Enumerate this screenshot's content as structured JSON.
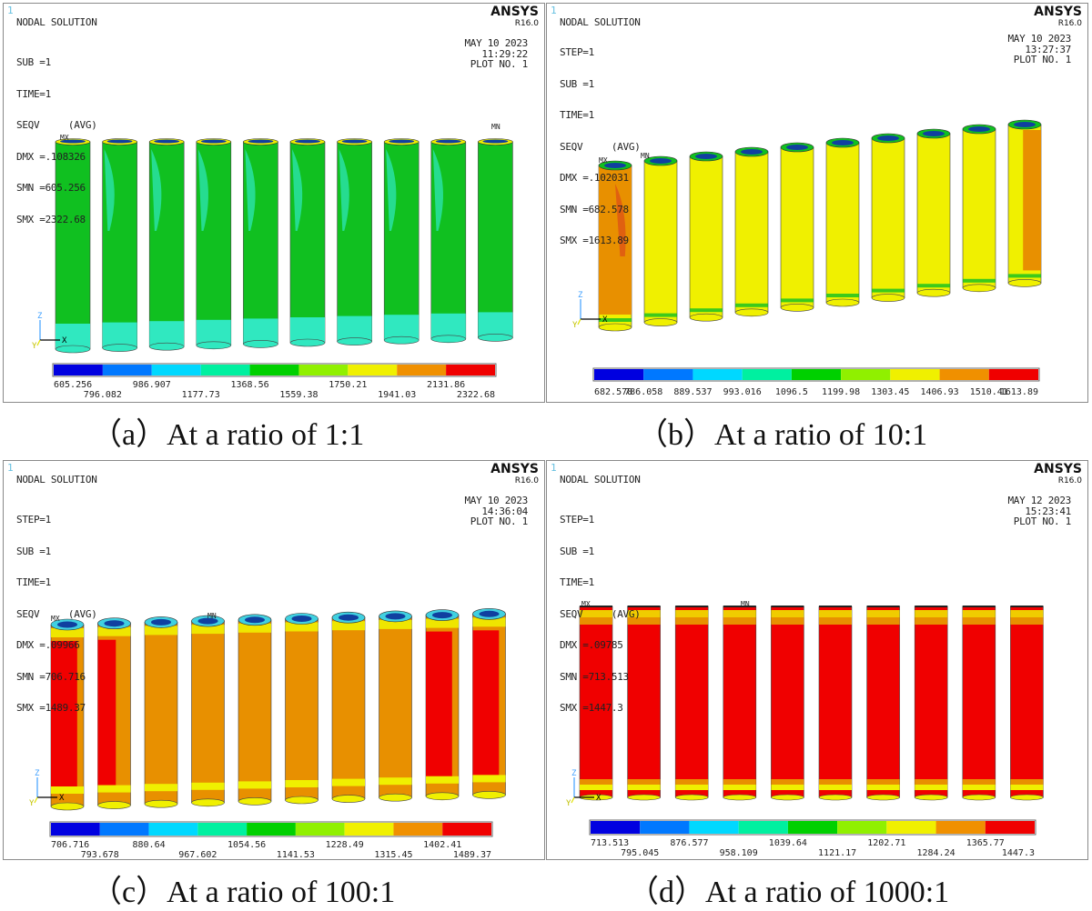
{
  "panels": [
    {
      "corner": "1",
      "title": "NODAL SOLUTION",
      "brand": "ANSYS",
      "version": "R16.0",
      "info": [
        "SUB =1",
        "TIME=1",
        "SEQV     (AVG)",
        "DMX =.108326",
        "SMN =605.256",
        "SMX =2322.68"
      ],
      "date": "MAY 10 2023",
      "time": "11:29:22",
      "plot": "PLOT NO.   1",
      "legend": [
        "605.256",
        "796.082",
        "986.907",
        "1177.73",
        "1368.56",
        "1559.38",
        "1750.21",
        "1941.03",
        "2131.86",
        "2322.68"
      ],
      "mx_label": "MX",
      "mn_label": "MN",
      "axis_z": "Z",
      "axis_y": "Y",
      "axis_x": "X",
      "caption": "（a）At a ratio of 1:1"
    },
    {
      "corner": "1",
      "title": "NODAL SOLUTION",
      "brand": "ANSYS",
      "version": "R16.0",
      "info": [
        "STEP=1",
        "SUB =1",
        "TIME=1",
        "SEQV     (AVG)",
        "DMX =.102031",
        "SMN =682.578",
        "SMX =1613.89"
      ],
      "date": "MAY 10 2023",
      "time": "13:27:37",
      "plot": "PLOT NO.   1",
      "legend": [
        "682.578",
        "786.058",
        "889.537",
        "993.016",
        "1096.5",
        "1199.98",
        "1303.45",
        "1406.93",
        "1510.41",
        "1613.89"
      ],
      "mx_label": "MX",
      "mn_label": "MN",
      "axis_z": "Z",
      "axis_y": "Y",
      "axis_x": "X",
      "caption": "（b）At a ratio of 10:1"
    },
    {
      "corner": "1",
      "title": "NODAL SOLUTION",
      "brand": "ANSYS",
      "version": "R16.0",
      "info": [
        "STEP=1",
        "SUB =1",
        "TIME=1",
        "SEQV     (AVG)",
        "DMX =.09966",
        "SMN =706.716",
        "SMX =1489.37"
      ],
      "date": "MAY 10 2023",
      "time": "14:36:04",
      "plot": "PLOT NO.   1",
      "legend": [
        "706.716",
        "793.678",
        "880.64",
        "967.602",
        "1054.56",
        "1141.53",
        "1228.49",
        "1315.45",
        "1402.41",
        "1489.37"
      ],
      "mx_label": "MX",
      "mn_label": "MN",
      "axis_z": "Z",
      "axis_y": "Y",
      "axis_x": "X",
      "caption": "（c）At a ratio of 100:1"
    },
    {
      "corner": "1",
      "title": "NODAL SOLUTION",
      "brand": "ANSYS",
      "version": "R16.0",
      "info": [
        "STEP=1",
        "SUB =1",
        "TIME=1",
        "SEQV     (AVG)",
        "DMX =.09785",
        "SMN =713.513",
        "SMX =1447.3"
      ],
      "date": "MAY 12 2023",
      "time": "15:23:41",
      "plot": "PLOT NO.   1",
      "legend": [
        "713.513",
        "795.045",
        "876.577",
        "958.109",
        "1039.64",
        "1121.17",
        "1202.71",
        "1284.24",
        "1365.77",
        "1447.3"
      ],
      "mx_label": "MX",
      "mn_label": "MN",
      "axis_z": "Z",
      "axis_y": "Y",
      "axis_x": "X",
      "caption": "（d）At a ratio of 1000:1"
    }
  ],
  "legend_colors": [
    "#0000e0",
    "#0078ff",
    "#00d8ff",
    "#00f0a0",
    "#00d000",
    "#90f000",
    "#f0f000",
    "#f09000",
    "#f00000"
  ],
  "stress_colors": {
    "green": "#10c020",
    "cyan": "#30e8c0",
    "yellow": "#f0f000",
    "orange": "#e89000",
    "red": "#f00000",
    "dark_blue": "#1040a0",
    "top_cyan": "#40d0e0"
  }
}
